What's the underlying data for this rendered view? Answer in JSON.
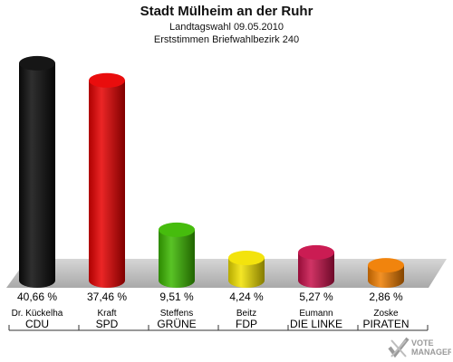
{
  "chart_data": {
    "type": "bar",
    "title": "Stadt Mülheim an der Ruhr",
    "subtitle_lines": [
      "Landtagswahl 09.05.2010",
      "Erststimmen Briefwahlbezirk 240"
    ],
    "categories": [
      {
        "candidate": "Dr. Kückelha",
        "party": "CDU"
      },
      {
        "candidate": "Kraft",
        "party": "SPD"
      },
      {
        "candidate": "Steffens",
        "party": "GRÜNE"
      },
      {
        "candidate": "Beitz",
        "party": "FDP"
      },
      {
        "candidate": "Eumann",
        "party": "DIE LINKE"
      },
      {
        "candidate": "Zoske",
        "party": "PIRATEN"
      }
    ],
    "values": [
      40.66,
      37.46,
      9.51,
      4.24,
      5.27,
      2.86
    ],
    "value_labels": [
      "40,66 %",
      "37,46 %",
      "9,51 %",
      "4,24 %",
      "5,27 %",
      "2,86 %"
    ],
    "colors": [
      "#0a0a0a",
      "#e80000",
      "#3cb800",
      "#f2e200",
      "#c8104a",
      "#f07d00"
    ],
    "bar_style": "3d-cylinder",
    "ylim": [
      0,
      42
    ]
  },
  "logo": {
    "text": "VOTE MANAGER",
    "icon": "checkmark-x-logo"
  }
}
